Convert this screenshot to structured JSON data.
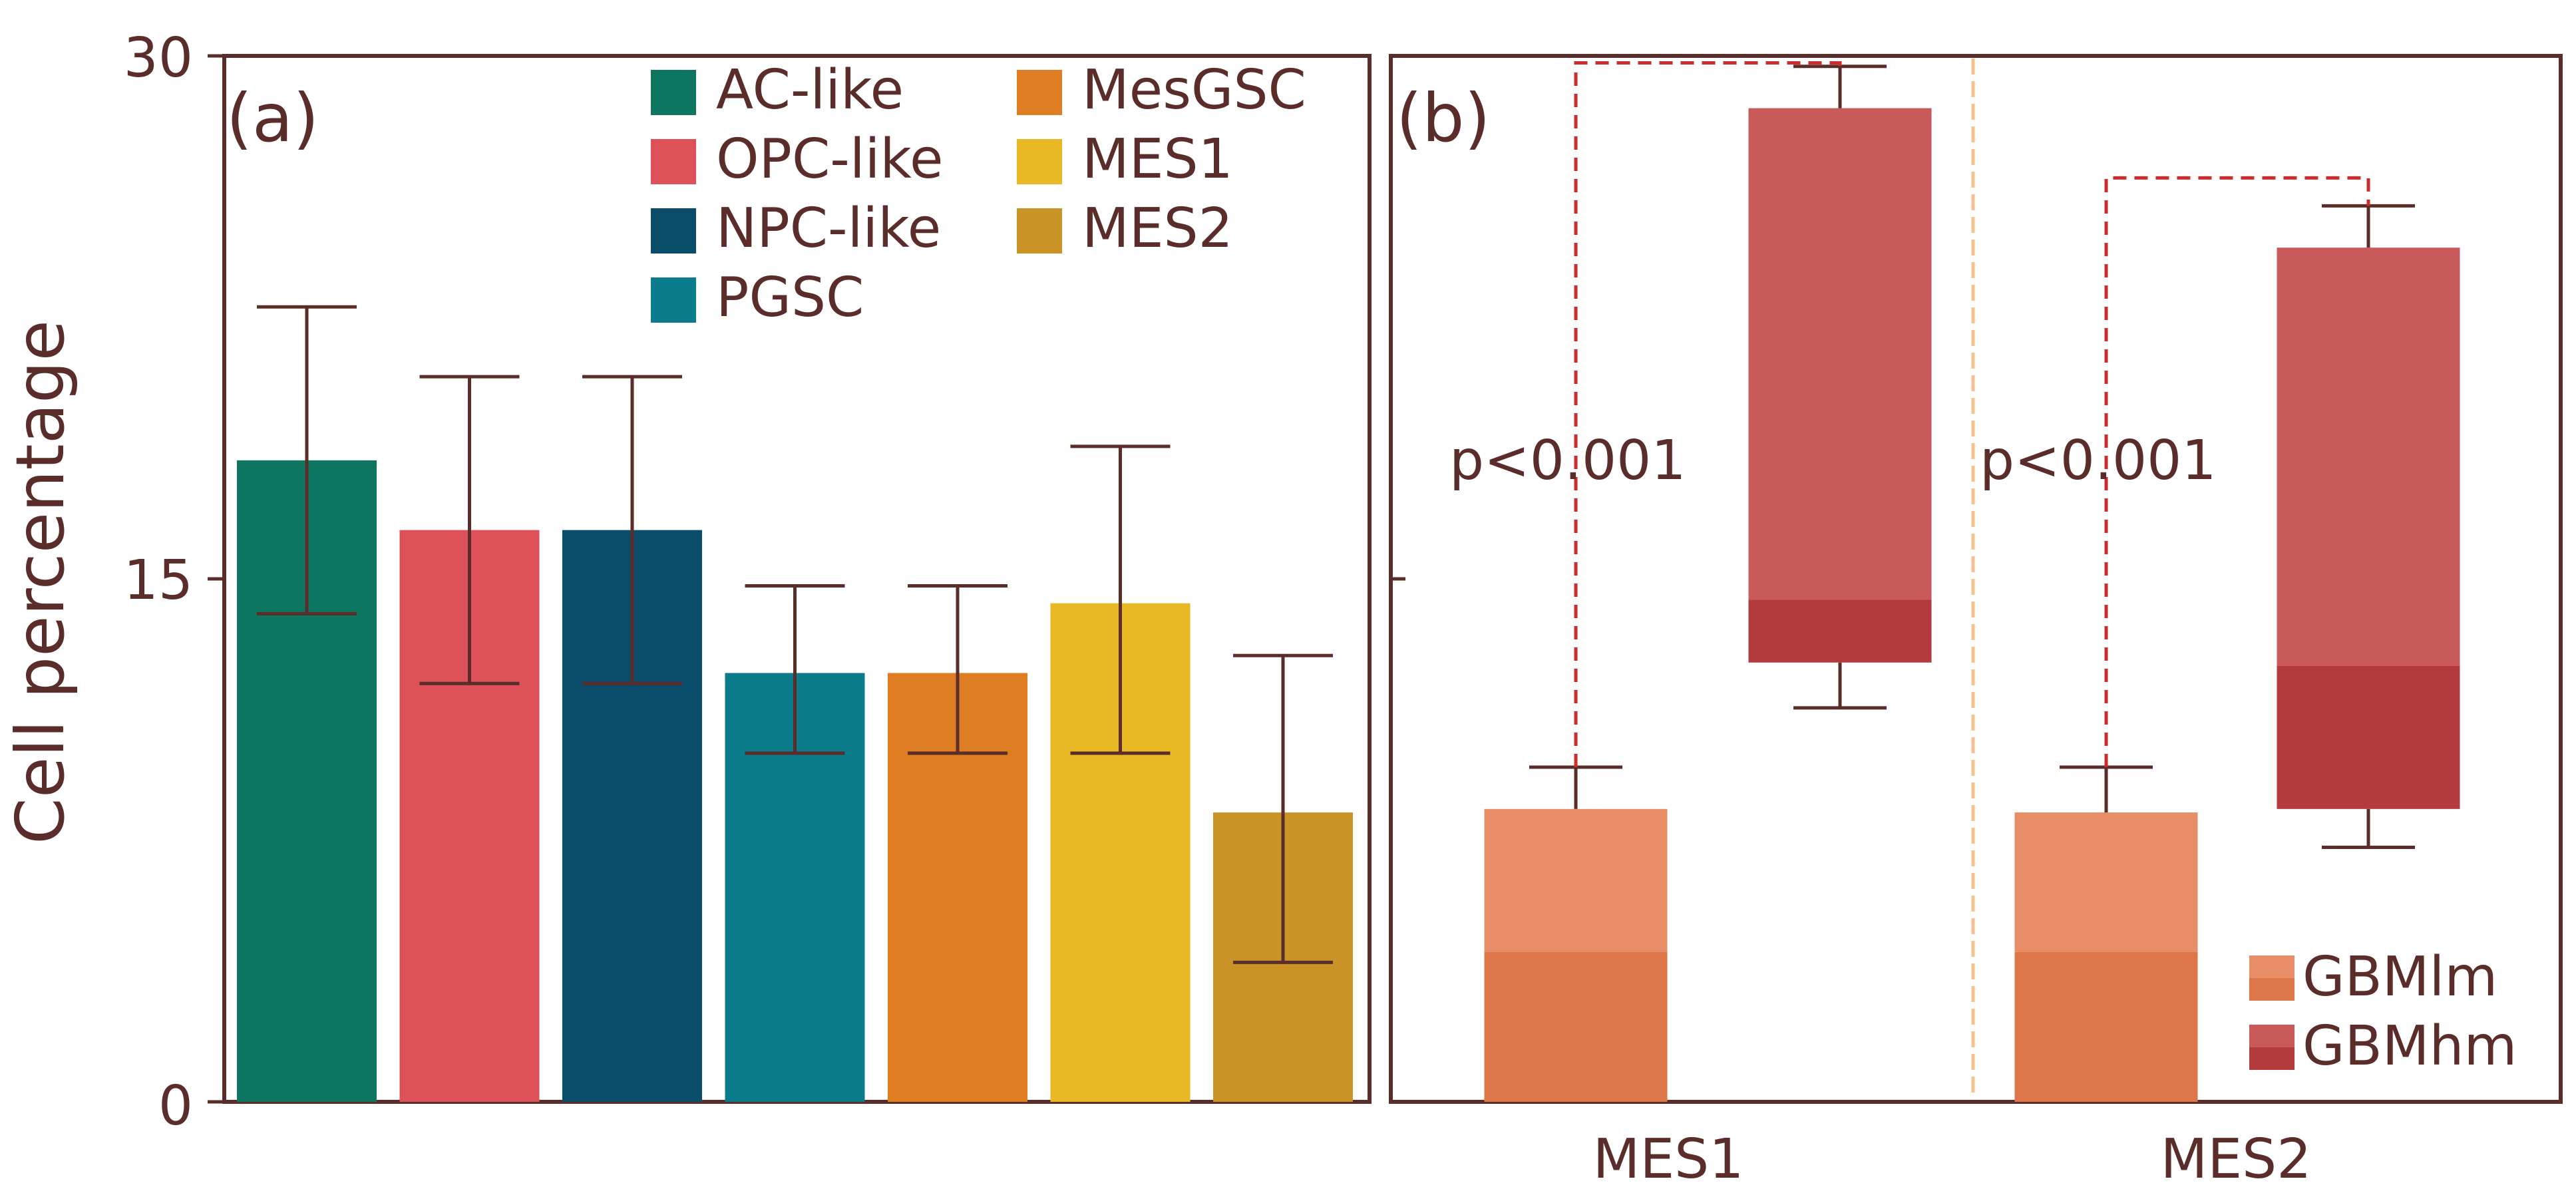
{
  "colors": {
    "axis": "#5a2d2a",
    "text": "#5a2d2a",
    "whisker": "#5a2d2a",
    "divider": "#f3c28e",
    "sig": "#cc2c2c",
    "GBMlm_light": "#e78d68",
    "GBMlm_dark": "#dc7649",
    "GBMhm_light": "#c95a5a",
    "GBMhm_dark": "#b33a3d"
  },
  "chart_data": [
    {
      "type": "bar",
      "panel_label": "(a)",
      "ylabel": "Cell percentage",
      "ylim": [
        0,
        30
      ],
      "yticks": [
        "0",
        "15",
        "30"
      ],
      "legend_position": "top",
      "categories": [
        "AC-like",
        "OPC-like",
        "NPC-like",
        "PGSC",
        "MesGSC",
        "MES1",
        "MES2"
      ],
      "values": [
        18.4,
        16.4,
        16.4,
        12.3,
        12.3,
        14.3,
        8.3
      ],
      "error_low": [
        14.0,
        12.0,
        12.0,
        10.0,
        10.0,
        10.0,
        4.0
      ],
      "error_high": [
        22.8,
        20.8,
        20.8,
        14.8,
        14.8,
        18.8,
        12.8
      ],
      "colors": [
        "#0e7560",
        "#df5159",
        "#094d6b",
        "#0b7c8b",
        "#df7d23",
        "#e9b925",
        "#ca9325"
      ]
    },
    {
      "type": "box",
      "panel_label": "(b)",
      "ylim": [
        0,
        30
      ],
      "categories": [
        "MES1",
        "MES2"
      ],
      "legend_position": "bottom-right",
      "series": [
        {
          "name": "GBMlm",
          "boxes": [
            {
              "whisker_low": 0,
              "q1": 0,
              "median": 4.3,
              "q3": 8.4,
              "whisker_high": 9.6
            },
            {
              "whisker_low": 0,
              "q1": 0,
              "median": 4.3,
              "q3": 8.3,
              "whisker_high": 9.6
            }
          ]
        },
        {
          "name": "GBMhm",
          "boxes": [
            {
              "whisker_low": 11.3,
              "q1": 12.6,
              "median": 14.4,
              "q3": 28.5,
              "whisker_high": 29.7
            },
            {
              "whisker_low": 7.3,
              "q1": 8.4,
              "median": 12.5,
              "q3": 24.5,
              "whisker_high": 25.7
            }
          ]
        }
      ],
      "annotations": [
        {
          "text": "p<0.001",
          "category": "MES1",
          "bracket_top": 29.8
        },
        {
          "text": "p<0.001",
          "category": "MES2",
          "bracket_top": 26.5
        }
      ]
    }
  ]
}
